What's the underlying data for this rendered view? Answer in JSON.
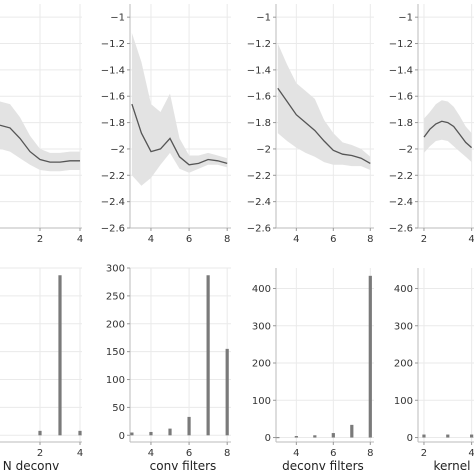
{
  "chart_data": [
    {
      "id": "p1",
      "type": "line",
      "xlim": [
        0,
        4.1
      ],
      "ylim": [
        -2.6,
        -0.9
      ],
      "xticks": [
        2,
        4
      ],
      "xtick_labels": [
        "2",
        "4"
      ],
      "yticks": [],
      "grid": true,
      "series": [
        {
          "x": [
            0.0,
            0.5,
            1.0,
            1.5,
            2.0,
            2.5,
            3.0,
            3.5,
            4.0
          ],
          "y": [
            -1.82,
            -1.84,
            -1.92,
            -2.02,
            -2.08,
            -2.1,
            -2.1,
            -2.09,
            -2.09
          ],
          "lo": [
            -2.0,
            -2.02,
            -2.07,
            -2.12,
            -2.16,
            -2.17,
            -2.17,
            -2.16,
            -2.16
          ],
          "hi": [
            -1.64,
            -1.66,
            -1.76,
            -1.9,
            -2.0,
            -2.03,
            -2.03,
            -2.02,
            -2.02
          ]
        }
      ]
    },
    {
      "id": "p2",
      "type": "line",
      "xlim": [
        2.9,
        8.2
      ],
      "ylim": [
        -2.6,
        -0.9
      ],
      "xticks": [
        4,
        6,
        8
      ],
      "xtick_labels": [
        "4",
        "6",
        "8"
      ],
      "yticks": [
        -1,
        -1.2,
        -1.4,
        -1.6,
        -1.8,
        -2,
        -2.2,
        -2.4,
        -2.6
      ],
      "ytick_labels": [
        "−1",
        "−1.2",
        "−1.4",
        "−1.6",
        "−1.8",
        "−2",
        "−2.2",
        "−2.4",
        "−2.6"
      ],
      "grid": true,
      "series": [
        {
          "x": [
            3.0,
            3.5,
            4.0,
            4.5,
            5.0,
            5.5,
            6.0,
            6.5,
            7.0,
            7.5,
            8.0
          ],
          "y": [
            -1.66,
            -1.88,
            -2.02,
            -2.0,
            -1.92,
            -2.06,
            -2.12,
            -2.11,
            -2.08,
            -2.09,
            -2.11
          ],
          "lo": [
            -2.2,
            -2.28,
            -2.22,
            -2.12,
            -2.03,
            -2.15,
            -2.18,
            -2.15,
            -2.12,
            -2.12,
            -2.14
          ],
          "hi": [
            -1.12,
            -1.34,
            -1.66,
            -1.72,
            -1.58,
            -1.92,
            -2.05,
            -2.05,
            -2.03,
            -2.05,
            -2.07
          ]
        }
      ]
    },
    {
      "id": "p3",
      "type": "line",
      "xlim": [
        2.9,
        8.2
      ],
      "ylim": [
        -2.6,
        -0.9
      ],
      "xticks": [
        4,
        6,
        8
      ],
      "xtick_labels": [
        "4",
        "6",
        "8"
      ],
      "yticks": [
        -1,
        -1.2,
        -1.4,
        -1.6,
        -1.8,
        -2,
        -2.2,
        -2.4,
        -2.6
      ],
      "ytick_labels": [
        "−1",
        "−1.2",
        "−1.4",
        "−1.6",
        "−1.8",
        "−2",
        "−2.2",
        "−2.4",
        "−2.6"
      ],
      "grid": true,
      "series": [
        {
          "x": [
            3.0,
            3.5,
            4.0,
            4.5,
            5.0,
            5.5,
            6.0,
            6.5,
            7.0,
            7.5,
            8.0
          ],
          "y": [
            -1.54,
            -1.64,
            -1.74,
            -1.8,
            -1.86,
            -1.94,
            -2.01,
            -2.04,
            -2.05,
            -2.07,
            -2.11
          ],
          "lo": [
            -1.88,
            -1.94,
            -1.99,
            -2.03,
            -2.06,
            -2.1,
            -2.12,
            -2.12,
            -2.13,
            -2.13,
            -2.16
          ],
          "hi": [
            -1.2,
            -1.36,
            -1.5,
            -1.56,
            -1.62,
            -1.78,
            -1.88,
            -1.95,
            -1.97,
            -2.0,
            -2.06
          ]
        }
      ]
    },
    {
      "id": "p4",
      "type": "line",
      "xlim": [
        1.75,
        4.1
      ],
      "ylim": [
        -2.6,
        -0.9
      ],
      "xticks": [
        2,
        4
      ],
      "xtick_labels": [
        "2",
        "4"
      ],
      "yticks": [
        -1,
        -1.2,
        -1.4,
        -1.6,
        -1.8,
        -2,
        -2.2,
        -2.4,
        -2.6
      ],
      "ytick_labels": [
        "−1",
        "−1.2",
        "−1.4",
        "−1.6",
        "−1.8",
        "−2",
        "−2.2",
        "−2.4",
        "−2.6"
      ],
      "grid": true,
      "series": [
        {
          "x": [
            2.0,
            2.25,
            2.5,
            2.75,
            3.0,
            3.25,
            3.5,
            3.75,
            4.0
          ],
          "y": [
            -1.91,
            -1.85,
            -1.81,
            -1.79,
            -1.8,
            -1.83,
            -1.89,
            -1.95,
            -1.99
          ],
          "lo": [
            -2.03,
            -1.98,
            -1.94,
            -1.93,
            -1.94,
            -1.98,
            -2.02,
            -2.06,
            -2.1
          ],
          "hi": [
            -1.77,
            -1.72,
            -1.66,
            -1.63,
            -1.64,
            -1.68,
            -1.75,
            -1.83,
            -1.88
          ]
        }
      ]
    },
    {
      "id": "p5",
      "type": "bar",
      "xlabel": "N deconv",
      "xlim": [
        0,
        4.1
      ],
      "ylim": [
        -12,
        300
      ],
      "xticks": [
        2,
        4
      ],
      "xtick_labels": [
        "2",
        "4"
      ],
      "yticks": [],
      "grid": true,
      "x": [
        2,
        3,
        4
      ],
      "values": [
        8,
        287,
        8
      ]
    },
    {
      "id": "p6",
      "type": "bar",
      "xlabel": "conv filters",
      "xlim": [
        2.9,
        8.2
      ],
      "ylim": [
        -12,
        300
      ],
      "xticks": [
        4,
        6,
        8
      ],
      "xtick_labels": [
        "4",
        "6",
        "8"
      ],
      "yticks": [
        0,
        50,
        100,
        150,
        200,
        250,
        300
      ],
      "ytick_labels": [
        "0",
        "50",
        "100",
        "150",
        "200",
        "250",
        "300"
      ],
      "grid": true,
      "x": [
        3,
        4,
        5,
        6,
        7,
        8
      ],
      "values": [
        5,
        6,
        12,
        33,
        287,
        155
      ]
    },
    {
      "id": "p7",
      "type": "bar",
      "xlabel": "deconv filters",
      "xlim": [
        2.9,
        8.2
      ],
      "ylim": [
        -12,
        455
      ],
      "xticks": [
        4,
        6,
        8
      ],
      "xtick_labels": [
        "4",
        "6",
        "8"
      ],
      "yticks": [
        0,
        100,
        200,
        300,
        400
      ],
      "ytick_labels": [
        "0",
        "100",
        "200",
        "300",
        "400"
      ],
      "grid": true,
      "x": [
        3,
        4,
        5,
        6,
        7,
        8
      ],
      "values": [
        1,
        4,
        6,
        12,
        34,
        434
      ]
    },
    {
      "id": "p8",
      "type": "bar",
      "xlabel": "kernel",
      "xlim": [
        1.75,
        4.1
      ],
      "ylim": [
        -12,
        455
      ],
      "xticks": [
        2,
        4
      ],
      "xtick_labels": [
        "2",
        "4"
      ],
      "yticks": [
        0,
        100,
        200,
        300,
        400
      ],
      "ytick_labels": [
        "0",
        "100",
        "200",
        "300",
        "400"
      ],
      "grid": true,
      "x": [
        2,
        3,
        4
      ],
      "values": [
        8,
        8,
        8
      ]
    }
  ]
}
